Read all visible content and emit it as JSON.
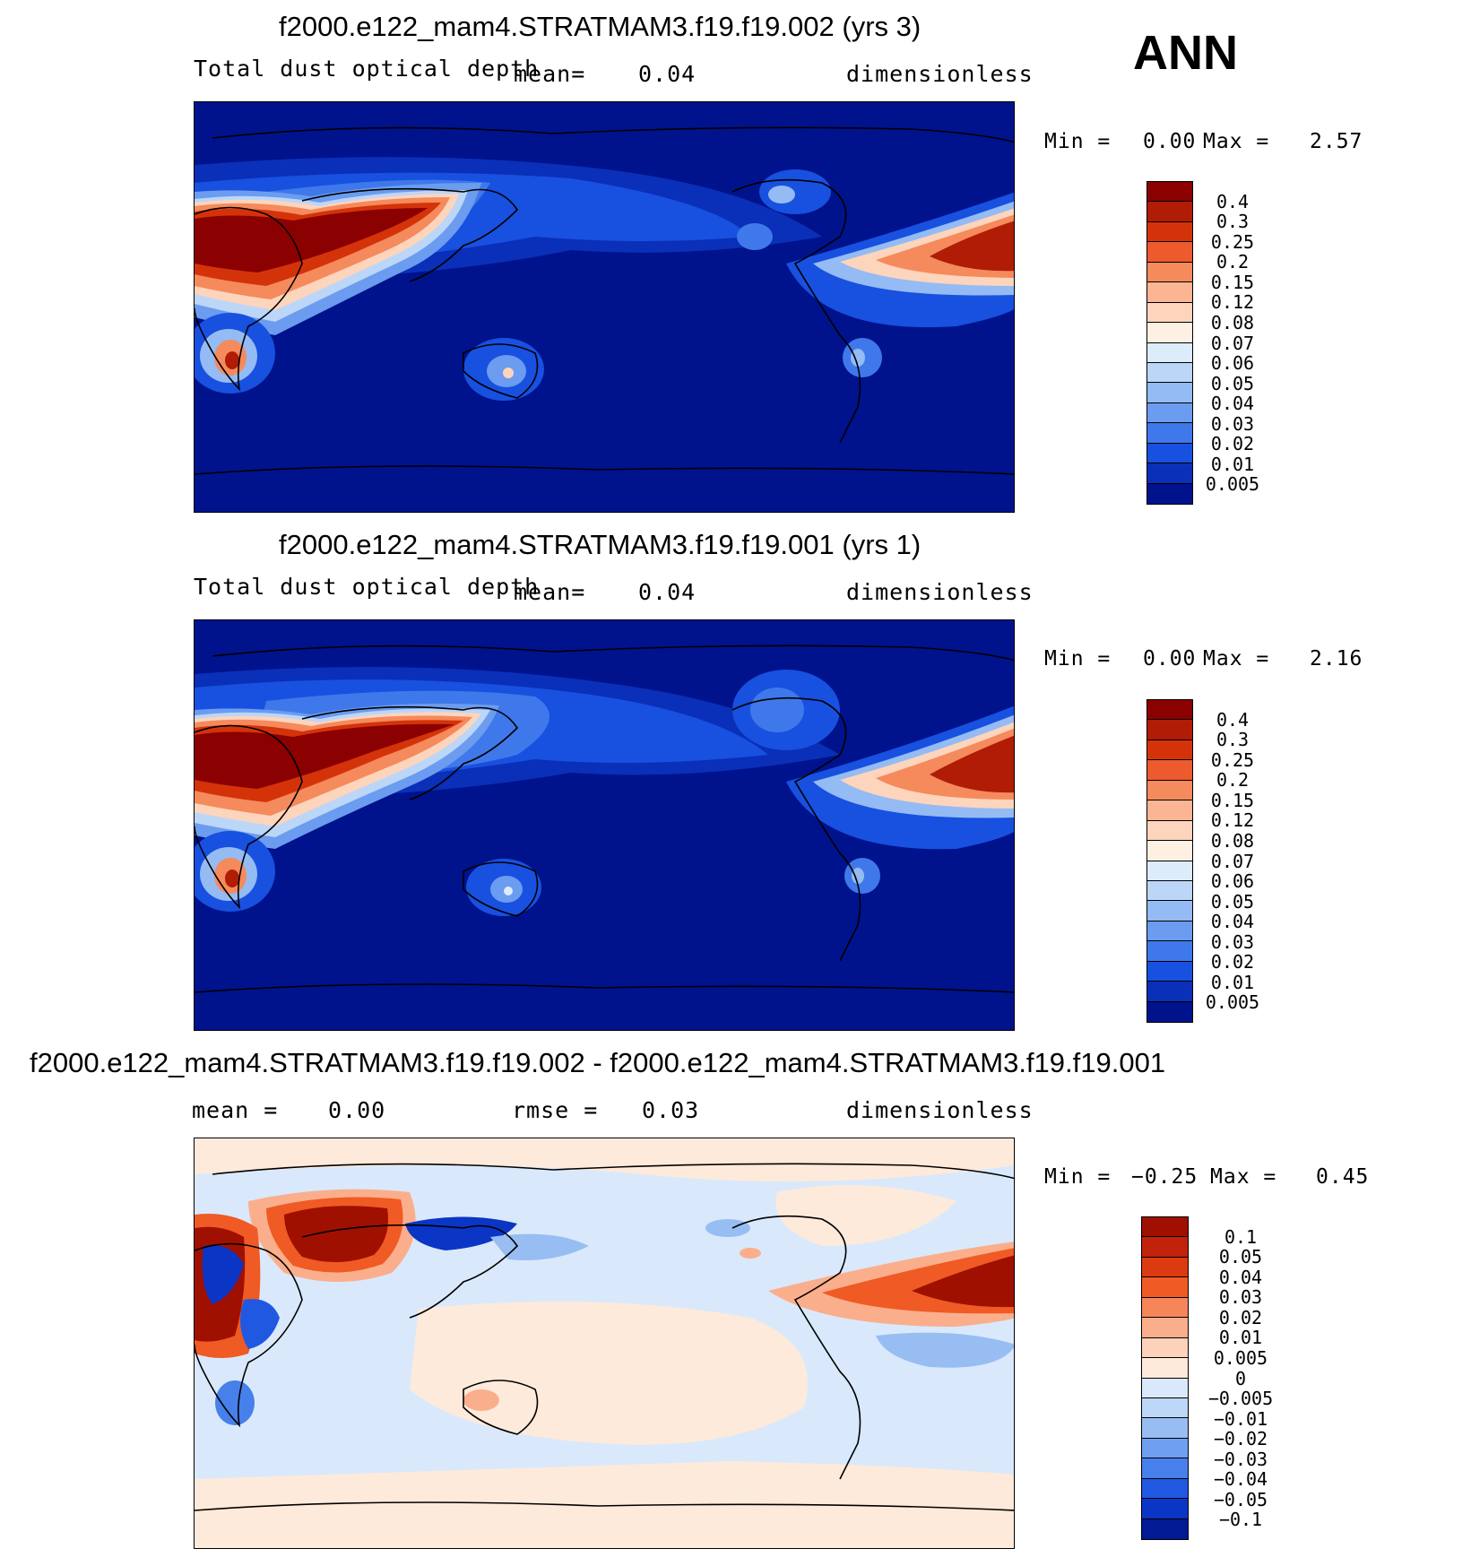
{
  "season": "ANN",
  "panels": [
    {
      "title": "f2000.e122_mam4.STRATMAM3.f19.f19.002 (yrs 3)",
      "variable": "Total dust optical depth",
      "stat1_label": "mean=",
      "stat1_value": "0.04",
      "units": "dimensionless",
      "min_label": "Min =",
      "min_value": "0.00",
      "max_label": "Max =",
      "max_value": "2.57",
      "levels": [
        "0.4",
        "0.3",
        "0.25",
        "0.2",
        "0.15",
        "0.12",
        "0.08",
        "0.07",
        "0.06",
        "0.05",
        "0.04",
        "0.03",
        "0.02",
        "0.01",
        "0.005"
      ],
      "colors": [
        "#8b0000",
        "#b01c05",
        "#d4330a",
        "#ec5a2e",
        "#f58a5c",
        "#fbb592",
        "#fdd4bc",
        "#fef0e2",
        "#ddecfb",
        "#bcd6f8",
        "#94bbf3",
        "#6b9cef",
        "#3f78ea",
        "#1850e0",
        "#0a2fb8",
        "#00138c"
      ]
    },
    {
      "title": "f2000.e122_mam4.STRATMAM3.f19.f19.001 (yrs 1)",
      "variable": "Total dust optical depth",
      "stat1_label": "mean=",
      "stat1_value": "0.04",
      "units": "dimensionless",
      "min_label": "Min =",
      "min_value": "0.00",
      "max_label": "Max =",
      "max_value": "2.16",
      "levels": [
        "0.4",
        "0.3",
        "0.25",
        "0.2",
        "0.15",
        "0.12",
        "0.08",
        "0.07",
        "0.06",
        "0.05",
        "0.04",
        "0.03",
        "0.02",
        "0.01",
        "0.005"
      ],
      "colors": [
        "#8b0000",
        "#b01c05",
        "#d4330a",
        "#ec5a2e",
        "#f58a5c",
        "#fbb592",
        "#fdd4bc",
        "#fef0e2",
        "#ddecfb",
        "#bcd6f8",
        "#94bbf3",
        "#6b9cef",
        "#3f78ea",
        "#1850e0",
        "#0a2fb8",
        "#00138c"
      ]
    },
    {
      "title": "f2000.e122_mam4.STRATMAM3.f19.f19.002 - f2000.e122_mam4.STRATMAM3.f19.f19.001",
      "stat1_label": "mean =",
      "stat1_value": "0.00",
      "stat2_label": "rmse =",
      "stat2_value": "0.03",
      "units": "dimensionless",
      "min_label": "Min =",
      "min_value": "−0.25",
      "max_label": "Max =",
      "max_value": "0.45",
      "levels": [
        "0.1",
        "0.05",
        "0.04",
        "0.03",
        "0.02",
        "0.01",
        "0.005",
        "0",
        "−0.005",
        "−0.01",
        "−0.02",
        "−0.03",
        "−0.04",
        "−0.05",
        "−0.1"
      ],
      "colors": [
        "#a01000",
        "#c2220a",
        "#dc3a10",
        "#f05a24",
        "#f7855a",
        "#fbae8c",
        "#fdd2ba",
        "#feeadb",
        "#d9e9fb",
        "#bdd7f8",
        "#98bdf3",
        "#6f9ff0",
        "#4780eb",
        "#2158e2",
        "#0b35c4",
        "#021a94"
      ]
    }
  ]
}
